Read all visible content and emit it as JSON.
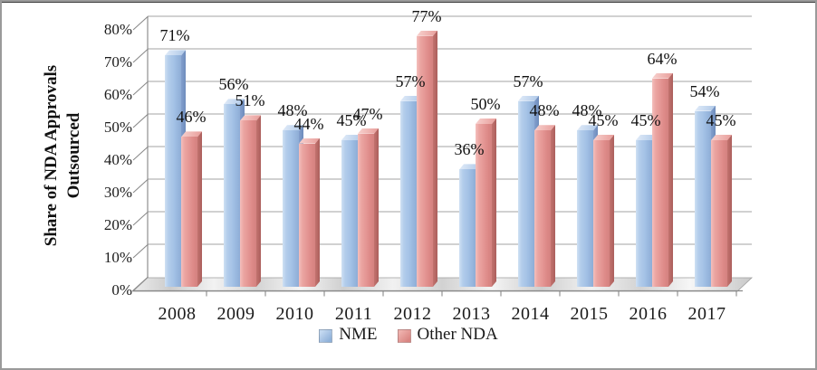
{
  "frame": {
    "background": "#ffffff",
    "border_side_color": "#9a9a9a",
    "border_top_color": "#3c3c3c"
  },
  "chart_data": {
    "type": "bar",
    "style": "3d-clustered-column",
    "categories": [
      "2008",
      "2009",
      "2010",
      "2011",
      "2012",
      "2013",
      "2014",
      "2015",
      "2016",
      "2017"
    ],
    "series": [
      {
        "name": "NME",
        "color": "#a4c2e6",
        "values": [
          71,
          56,
          48,
          45,
          57,
          36,
          57,
          48,
          45,
          54
        ]
      },
      {
        "name": "Other NDA",
        "color": "#e39492",
        "values": [
          46,
          51,
          44,
          47,
          77,
          50,
          48,
          45,
          64,
          45
        ]
      }
    ],
    "ylabel": "Share of NDA Approvals Outsourced",
    "ylabel_lines": [
      "Share of NDA Approvals",
      "Outsourced"
    ],
    "y_ticks": [
      "0%",
      "10%",
      "20%",
      "30%",
      "40%",
      "50%",
      "60%",
      "70%",
      "80%"
    ],
    "ylim": [
      0,
      80
    ],
    "y_step": 10,
    "grid": true,
    "legend_position": "bottom",
    "data_label_format": "{value}%"
  },
  "legend": {
    "items": [
      {
        "label": "NME",
        "color": "#a4c2e6"
      },
      {
        "label": "Other NDA",
        "color": "#e39492"
      }
    ]
  },
  "colors": {
    "nme_front": "#a4c2e6",
    "nme_side": "#7191c1",
    "nme_cap": "#c4d7ef",
    "other_front": "#e39492",
    "other_side": "#bb6a66",
    "other_cap": "#efb0ad",
    "gridline": "#a3a3a3",
    "axis": "#8a8a8a",
    "floor": "#dcdcdc",
    "text": "#1c1c1c"
  }
}
